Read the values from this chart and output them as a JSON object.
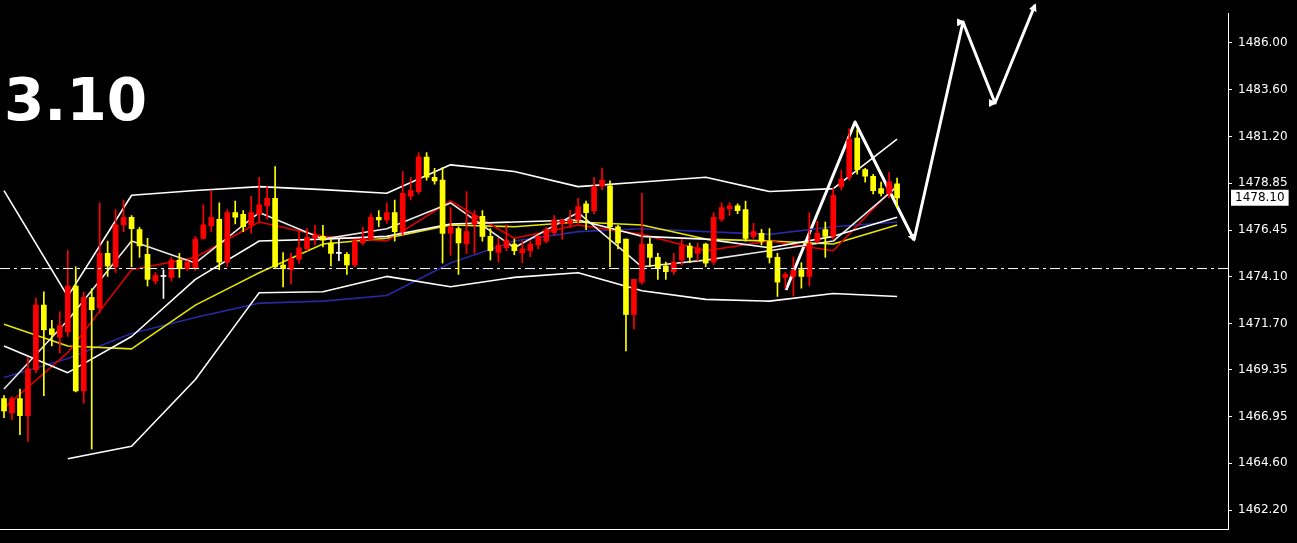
{
  "chart_data": {
    "type": "candlestick",
    "tick_labels": "y",
    "categories": [
      null,
      null,
      null,
      null,
      null,
      null,
      null,
      null,
      null,
      null,
      null,
      null,
      null,
      null,
      null,
      null,
      null,
      null,
      null,
      null,
      null,
      null,
      null,
      null,
      null,
      null,
      null,
      null,
      null,
      null,
      null,
      null,
      null,
      null,
      null,
      null,
      null,
      null,
      null,
      null,
      null,
      null,
      null,
      null,
      null,
      null,
      null,
      null,
      null,
      null,
      null,
      null,
      null,
      null,
      null,
      null,
      null,
      null,
      null,
      null,
      null,
      null,
      null,
      null,
      null,
      null,
      null,
      null,
      null,
      null,
      null,
      null,
      null,
      null,
      null,
      null,
      null,
      null,
      null,
      null,
      null,
      null,
      null,
      null,
      null,
      null,
      null,
      null,
      null,
      null,
      null,
      null,
      null,
      null,
      null,
      null,
      null,
      null,
      null,
      null,
      null,
      null,
      null,
      null,
      null,
      null,
      null,
      null,
      null,
      null,
      null,
      null,
      null,
      null,
      null,
      null,
      null,
      null,
      null,
      null,
      null,
      null,
      null,
      null,
      null,
      null,
      null,
      null,
      null,
      null,
      null,
      null,
      null,
      null,
      null,
      null,
      null,
      null,
      null,
      null,
      null,
      null,
      null,
      null,
      null,
      null,
      null,
      null,
      null,
      null,
      null,
      null,
      null,
      null
    ],
    "ohlc": [
      [
        1467.88,
        1468.03,
        1466.91,
        1467.25
      ],
      [
        1467.15,
        1467.98,
        1466.81,
        1467.88
      ],
      [
        1467.88,
        1468.37,
        1466.04,
        1467.01
      ],
      [
        1467.01,
        1469.97,
        1465.7,
        1469.39
      ],
      [
        1469.34,
        1472.98,
        1469.2,
        1472.64
      ],
      [
        1472.64,
        1473.32,
        1468.03,
        1471.38
      ],
      [
        1471.43,
        1471.87,
        1470.56,
        1471.14
      ],
      [
        1471.0,
        1472.3,
        1470.2,
        1471.6
      ],
      [
        1471.28,
        1475.41,
        1471.04,
        1473.61
      ],
      [
        1473.61,
        1474.59,
        1468.22,
        1468.27
      ],
      [
        1468.27,
        1473.3,
        1467.64,
        1473.03
      ],
      [
        1473.03,
        1473.47,
        1465.31,
        1472.4
      ],
      [
        1472.5,
        1477.84,
        1472.25,
        1475.27
      ],
      [
        1475.27,
        1475.9,
        1474.1,
        1474.63
      ],
      [
        1474.59,
        1477.5,
        1474.3,
        1476.72
      ],
      [
        1476.72,
        1477.99,
        1476.38,
        1477.11
      ],
      [
        1477.11,
        1477.2,
        1474.59,
        1476.53
      ],
      [
        1476.48,
        1476.6,
        1475.07,
        1475.65
      ],
      [
        1475.22,
        1476.04,
        1473.61,
        1473.95
      ],
      [
        1473.86,
        1474.3,
        1473.71,
        1474.15
      ],
      [
        1474.1,
        1474.44,
        1472.98,
        1474.1
      ],
      [
        1474.05,
        1475.07,
        1473.86,
        1474.93
      ],
      [
        1474.93,
        1475.27,
        1474.05,
        1474.49
      ],
      [
        1474.49,
        1474.9,
        1474.4,
        1474.83
      ],
      [
        1474.54,
        1476.14,
        1474.4,
        1476.0
      ],
      [
        1476.04,
        1477.74,
        1476.0,
        1476.72
      ],
      [
        1476.67,
        1478.47,
        1476.38,
        1477.11
      ],
      [
        1477.01,
        1477.84,
        1474.44,
        1474.83
      ],
      [
        1474.83,
        1477.5,
        1474.6,
        1477.35
      ],
      [
        1477.35,
        1477.94,
        1476.77,
        1477.11
      ],
      [
        1477.26,
        1477.45,
        1476.38,
        1476.63
      ],
      [
        1476.72,
        1478.18,
        1476.29,
        1477.35
      ],
      [
        1477.26,
        1479.15,
        1476.87,
        1477.74
      ],
      [
        1477.69,
        1478.67,
        1477.01,
        1478.08
      ],
      [
        1478.08,
        1479.69,
        1474.54,
        1474.59
      ],
      [
        1474.68,
        1475.31,
        1473.57,
        1474.49
      ],
      [
        1474.44,
        1475.27,
        1473.71,
        1475.02
      ],
      [
        1474.97,
        1476.38,
        1474.78,
        1475.56
      ],
      [
        1475.51,
        1476.53,
        1475.41,
        1476.09
      ],
      [
        1476.04,
        1476.7,
        1475.7,
        1476.19
      ],
      [
        1476.14,
        1476.7,
        1475.6,
        1475.95
      ],
      [
        1475.8,
        1476.0,
        1474.63,
        1475.27
      ],
      [
        1475.27,
        1476.0,
        1474.9,
        1475.27
      ],
      [
        1475.22,
        1475.31,
        1474.2,
        1474.68
      ],
      [
        1474.68,
        1476.0,
        1474.6,
        1475.9
      ],
      [
        1475.8,
        1476.6,
        1475.7,
        1476.04
      ],
      [
        1476.04,
        1477.3,
        1476.0,
        1477.11
      ],
      [
        1477.11,
        1477.45,
        1476.63,
        1476.97
      ],
      [
        1476.97,
        1477.84,
        1476.8,
        1477.35
      ],
      [
        1477.35,
        1477.99,
        1475.9,
        1476.38
      ],
      [
        1476.38,
        1479.44,
        1476.2,
        1478.33
      ],
      [
        1478.18,
        1479.15,
        1478.0,
        1478.47
      ],
      [
        1478.42,
        1480.41,
        1478.3,
        1480.17
      ],
      [
        1480.17,
        1480.41,
        1479.0,
        1479.15
      ],
      [
        1479.15,
        1479.6,
        1478.8,
        1478.96
      ],
      [
        1479.01,
        1479.64,
        1474.78,
        1476.29
      ],
      [
        1476.29,
        1477.6,
        1475.17,
        1476.63
      ],
      [
        1476.53,
        1476.63,
        1474.2,
        1475.8
      ],
      [
        1475.75,
        1478.42,
        1475.27,
        1476.38
      ],
      [
        1476.77,
        1477.45,
        1475.27,
        1477.21
      ],
      [
        1477.16,
        1477.45,
        1475.9,
        1476.14
      ],
      [
        1476.14,
        1476.53,
        1474.93,
        1475.41
      ],
      [
        1475.32,
        1476.04,
        1474.83,
        1475.7
      ],
      [
        1475.56,
        1476.72,
        1475.41,
        1475.95
      ],
      [
        1475.75,
        1476.0,
        1475.2,
        1475.41
      ],
      [
        1475.3,
        1475.9,
        1474.8,
        1475.5
      ],
      [
        1475.41,
        1475.9,
        1475.1,
        1475.75
      ],
      [
        1475.7,
        1476.2,
        1475.5,
        1476.14
      ],
      [
        1475.9,
        1476.6,
        1475.8,
        1476.48
      ],
      [
        1476.33,
        1477.2,
        1476.2,
        1476.97
      ],
      [
        1476.8,
        1477.0,
        1476.0,
        1476.97
      ],
      [
        1476.77,
        1477.45,
        1476.6,
        1476.97
      ],
      [
        1476.97,
        1478.08,
        1476.8,
        1477.65
      ],
      [
        1477.79,
        1477.94,
        1476.48,
        1477.35
      ],
      [
        1477.45,
        1479.15,
        1477.3,
        1478.67
      ],
      [
        1478.7,
        1479.6,
        1478.5,
        1479.0
      ],
      [
        1478.71,
        1478.96,
        1474.59,
        1476.63
      ],
      [
        1476.63,
        1476.7,
        1475.5,
        1475.8
      ],
      [
        1476.0,
        1476.0,
        1470.31,
        1472.16
      ],
      [
        1472.16,
        1473.95,
        1471.43,
        1473.95
      ],
      [
        1473.81,
        1478.33,
        1473.7,
        1475.75
      ],
      [
        1475.75,
        1476.04,
        1474.59,
        1475.07
      ],
      [
        1475.07,
        1475.27,
        1473.95,
        1474.54
      ],
      [
        1474.63,
        1474.83,
        1473.95,
        1474.34
      ],
      [
        1474.34,
        1475.27,
        1474.2,
        1474.83
      ],
      [
        1474.93,
        1476.0,
        1474.68,
        1475.65
      ],
      [
        1475.65,
        1475.8,
        1474.8,
        1475.07
      ],
      [
        1475.27,
        1475.8,
        1474.9,
        1475.56
      ],
      [
        1475.75,
        1475.8,
        1474.59,
        1474.78
      ],
      [
        1474.83,
        1477.35,
        1474.7,
        1477.11
      ],
      [
        1477.01,
        1477.84,
        1476.9,
        1477.6
      ],
      [
        1477.55,
        1477.84,
        1477.2,
        1477.69
      ],
      [
        1477.69,
        1477.8,
        1477.3,
        1477.45
      ],
      [
        1477.5,
        1477.94,
        1475.9,
        1476.04
      ],
      [
        1476.14,
        1476.8,
        1476.0,
        1476.38
      ],
      [
        1476.29,
        1476.5,
        1475.7,
        1475.9
      ],
      [
        1475.9,
        1476.53,
        1474.78,
        1475.07
      ],
      [
        1475.07,
        1475.27,
        1473.08,
        1473.81
      ],
      [
        1474.05,
        1474.3,
        1473.5,
        1474.2
      ],
      [
        1474.1,
        1475.1,
        1473.1,
        1474.4
      ],
      [
        1474.44,
        1474.8,
        1473.5,
        1474.1
      ],
      [
        1474.1,
        1477.35,
        1473.61,
        1475.75
      ],
      [
        1475.9,
        1476.9,
        1475.8,
        1476.29
      ],
      [
        1476.48,
        1476.87,
        1475.07,
        1476.14
      ],
      [
        1476.14,
        1478.6,
        1476.0,
        1478.23
      ],
      [
        1478.67,
        1479.5,
        1478.5,
        1479.06
      ],
      [
        1479.15,
        1481.63,
        1479.0,
        1481.09
      ],
      [
        1481.14,
        1481.58,
        1479.3,
        1479.54
      ],
      [
        1479.54,
        1479.6,
        1478.9,
        1479.2
      ],
      [
        1479.2,
        1479.3,
        1478.3,
        1478.47
      ],
      [
        1478.57,
        1478.9,
        1478.2,
        1478.33
      ],
      [
        1478.33,
        1479.4,
        1478.1,
        1478.91
      ],
      [
        1478.81,
        1479.1,
        1477.6,
        1478.1
      ],
      null,
      null,
      null,
      null,
      null,
      null,
      null,
      null,
      null,
      null,
      null,
      null,
      null,
      null,
      null,
      null,
      null,
      null,
      null,
      null,
      null,
      null,
      null,
      null,
      null,
      null,
      null,
      null,
      null,
      null,
      null,
      null,
      null,
      null,
      null,
      null,
      null,
      null,
      null,
      null,
      null
    ],
    "colors": [
      "#ffff00",
      "#ff0000",
      "#ffff00",
      "#ff0000",
      "#ff0000",
      "#ffff00",
      "#ffff00",
      "#ff0000",
      "#ff0000",
      "#ffff00",
      "#ff0000",
      "#ffff00",
      "#ff0000",
      "#ffff00",
      "#ff0000",
      "#ff0000",
      "#ffff00",
      "#ffff00",
      "#ffff00",
      "#ff0000",
      "#ffffff",
      "#ff0000",
      "#ffff00",
      "#ff0000",
      "#ff0000",
      "#ff0000",
      "#ff0000",
      "#ffff00",
      "#ff0000",
      "#ffff00",
      "#ffff00",
      "#ff0000",
      "#ff0000",
      "#ff0000",
      "#ffff00",
      "#ffff00",
      "#ff0000",
      "#ff0000",
      "#ff0000",
      "#ff0000",
      "#ffff00",
      "#ffff00",
      "#ffffff",
      "#ffff00",
      "#ff0000",
      "#ff0000",
      "#ff0000",
      "#ffff00",
      "#ff0000",
      "#ffff00",
      "#ff0000",
      "#ff0000",
      "#ff0000",
      "#ffff00",
      "#ffff00",
      "#ffff00",
      "#ff0000",
      "#ffff00",
      "#ff0000",
      "#ff0000",
      "#ffff00",
      "#ffff00",
      "#ff0000",
      "#ff0000",
      "#ffff00",
      "#ff0000",
      "#ff0000",
      "#ff0000",
      "#ff0000",
      "#ff0000",
      "#ff0000",
      "#ff0000",
      "#ff0000",
      "#ffff00",
      "#ff0000",
      "#ff0000",
      "#ffff00",
      "#ffff00",
      "#ffff00",
      "#ff0000",
      "#ff0000",
      "#ffff00",
      "#ffff00",
      "#ffff00",
      "#ff0000",
      "#ff0000",
      "#ffff00",
      "#ff0000",
      "#ffff00",
      "#ff0000",
      "#ff0000",
      "#ff0000",
      "#ffff00",
      "#ffff00",
      "#ff0000",
      "#ffff00",
      "#ffff00",
      "#ffff00",
      "#ff0000",
      "#ff0000",
      "#ffff00",
      "#ff0000",
      "#ff0000",
      "#ffff00",
      "#ff0000",
      "#ff0000",
      "#ff0000",
      "#ffff00",
      "#ffff00",
      "#ffff00",
      "#ffff00",
      "#ff0000",
      "#ffff00",
      null,
      null,
      null,
      null,
      null,
      null,
      null,
      null,
      null,
      null,
      null,
      null,
      null,
      null,
      null,
      null,
      null,
      null,
      null,
      null,
      null,
      null,
      null,
      null,
      null,
      null,
      null,
      null,
      null,
      null,
      null,
      null,
      null,
      null,
      null,
      null,
      null,
      null,
      null,
      null,
      null
    ],
    "series": [
      {
        "type": "line",
        "color": "#ffffff",
        "values": [
          1478.47,
          null,
          null,
          null,
          null,
          null,
          null,
          null,
          1473.08,
          null,
          null,
          null,
          null,
          null,
          null,
          null,
          1478.23,
          null,
          null,
          null,
          null,
          null,
          null,
          null,
          1478.47,
          null,
          null,
          null,
          null,
          null,
          null,
          null,
          1478.67,
          null,
          null,
          null,
          null,
          null,
          null,
          null,
          1478.52,
          null,
          null,
          null,
          null,
          null,
          null,
          null,
          1478.33,
          null,
          null,
          null,
          null,
          null,
          null,
          null,
          1479.78,
          null,
          null,
          null,
          null,
          null,
          null,
          null,
          1479.44,
          null,
          null,
          null,
          null,
          null,
          null,
          null,
          1478.67,
          null,
          null,
          null,
          null,
          null,
          null,
          null,
          1478.91,
          null,
          null,
          null,
          null,
          null,
          null,
          null,
          1479.15,
          null,
          null,
          null,
          null,
          null,
          null,
          null,
          1478.42,
          null,
          null,
          null,
          null,
          null,
          null,
          null,
          1478.57,
          null,
          null,
          null,
          null,
          null,
          null,
          null,
          1481.09,
          null,
          null,
          null,
          null,
          null,
          null,
          null,
          null,
          null,
          null,
          null,
          null,
          null,
          null,
          null,
          null,
          null,
          null,
          null,
          null,
          null,
          null,
          null,
          null,
          null,
          null,
          null,
          null,
          null,
          null,
          null,
          null,
          null,
          null,
          null,
          null,
          null,
          null,
          null,
          null,
          null
        ]
      },
      {
        "type": "line",
        "color": "#ffffff",
        "values": [
          1470.56,
          null,
          null,
          null,
          null,
          null,
          null,
          null,
          1469.2,
          null,
          null,
          null,
          null,
          null,
          null,
          null,
          1471.04,
          null,
          null,
          null,
          null,
          null,
          null,
          null,
          1473.95,
          null,
          null,
          null,
          null,
          null,
          null,
          null,
          1475.9,
          null,
          null,
          null,
          null,
          null,
          null,
          null,
          1476.0,
          null,
          null,
          null,
          null,
          null,
          null,
          null,
          1476.14,
          null,
          null,
          null,
          null,
          null,
          null,
          null,
          1476.77,
          null,
          null,
          null,
          null,
          null,
          null,
          null,
          1476.87,
          null,
          null,
          null,
          null,
          null,
          null,
          null,
          1476.97,
          null,
          null,
          null,
          null,
          null,
          null,
          null,
          1476.14,
          null,
          null,
          null,
          null,
          null,
          null,
          null,
          1476.0,
          null,
          null,
          null,
          null,
          null,
          null,
          null,
          1475.56,
          null,
          null,
          null,
          null,
          null,
          null,
          null,
          1476.14,
          null,
          null,
          null,
          null,
          null,
          null,
          null,
          1477.11,
          null,
          null,
          null,
          null,
          null,
          null,
          null,
          null,
          null,
          null,
          null,
          null,
          null,
          null,
          null,
          null,
          null,
          null,
          null,
          null,
          null,
          null,
          null,
          null,
          null,
          null,
          null,
          null,
          null,
          null,
          null,
          null,
          null,
          null,
          null,
          null,
          null,
          null,
          null,
          null,
          null
        ]
      },
      {
        "type": "line",
        "color": "#ffffff",
        "values": [
          null,
          null,
          null,
          null,
          null,
          null,
          null,
          null,
          1464.82,
          null,
          null,
          null,
          null,
          null,
          null,
          null,
          1465.45,
          null,
          null,
          null,
          null,
          null,
          null,
          null,
          1468.85,
          null,
          null,
          null,
          null,
          null,
          null,
          null,
          1473.27,
          null,
          null,
          null,
          null,
          null,
          null,
          null,
          1473.32,
          null,
          null,
          null,
          null,
          null,
          null,
          null,
          1474.1,
          null,
          null,
          null,
          null,
          null,
          null,
          null,
          1473.57,
          null,
          null,
          null,
          null,
          null,
          null,
          null,
          1474.05,
          null,
          null,
          null,
          null,
          null,
          null,
          null,
          1474.29,
          null,
          null,
          null,
          null,
          null,
          null,
          null,
          1473.37,
          null,
          null,
          null,
          null,
          null,
          null,
          null,
          1472.93,
          null,
          null,
          null,
          null,
          null,
          null,
          null,
          1472.84,
          null,
          null,
          null,
          null,
          null,
          null,
          null,
          1473.23,
          null,
          null,
          null,
          null,
          null,
          null,
          null,
          1473.08,
          null,
          null,
          null,
          null,
          null,
          null,
          null,
          null,
          null,
          null,
          null,
          null,
          null,
          null,
          null,
          null,
          null,
          null,
          null,
          null,
          null,
          null,
          null,
          null,
          null,
          null,
          null,
          null,
          null,
          null,
          null,
          null,
          null,
          null,
          null,
          null,
          null,
          null,
          null,
          null,
          null
        ]
      },
      {
        "type": "line",
        "color": "#e8e8e8",
        "values": [
          1468.37,
          null,
          null,
          null,
          null,
          null,
          null,
          null,
          1471.87,
          null,
          null,
          null,
          null,
          null,
          null,
          null,
          1475.9,
          null,
          null,
          null,
          null,
          null,
          null,
          null,
          1474.78,
          null,
          null,
          null,
          null,
          null,
          null,
          null,
          1477.35,
          null,
          null,
          null,
          null,
          null,
          null,
          null,
          1476.0,
          null,
          null,
          null,
          null,
          null,
          null,
          null,
          1476.53,
          null,
          null,
          null,
          null,
          null,
          null,
          null,
          1477.84,
          null,
          null,
          null,
          null,
          null,
          null,
          null,
          1475.56,
          null,
          null,
          null,
          null,
          null,
          null,
          null,
          1477.35,
          null,
          null,
          null,
          null,
          null,
          null,
          null,
          1474.59,
          null,
          null,
          null,
          null,
          null,
          null,
          null,
          1474.93,
          null,
          null,
          null,
          null,
          null,
          null,
          null,
          1475.41,
          null,
          null,
          null,
          null,
          null,
          null,
          null,
          1475.9,
          null,
          null,
          null,
          null,
          null,
          null,
          null,
          1478.67,
          null,
          null,
          null,
          null,
          null,
          null,
          null,
          null,
          null,
          null,
          null,
          null,
          null,
          null,
          null,
          null,
          null,
          null,
          null,
          null,
          null,
          null,
          null,
          null,
          null,
          null,
          null,
          null,
          null,
          null,
          null,
          null,
          null,
          null,
          null,
          null,
          null,
          null,
          null,
          null,
          null
        ]
      },
      {
        "type": "line",
        "color": "#e00000",
        "values": [
          1467.4,
          null,
          null,
          null,
          null,
          null,
          null,
          null,
          1470.22,
          null,
          null,
          null,
          null,
          null,
          null,
          null,
          1474.44,
          null,
          null,
          null,
          null,
          null,
          null,
          null,
          1475.07,
          null,
          null,
          null,
          null,
          null,
          null,
          null,
          1476.87,
          null,
          null,
          null,
          null,
          null,
          null,
          null,
          1476.14,
          null,
          null,
          null,
          null,
          null,
          null,
          null,
          1475.9,
          null,
          null,
          null,
          null,
          null,
          null,
          null,
          1477.94,
          null,
          null,
          null,
          null,
          null,
          null,
          null,
          1476.04,
          null,
          null,
          null,
          null,
          null,
          null,
          null,
          1476.72,
          null,
          null,
          null,
          null,
          null,
          null,
          null,
          1476.24,
          null,
          null,
          null,
          null,
          null,
          null,
          null,
          1475.41,
          null,
          null,
          null,
          null,
          null,
          null,
          null,
          1475.9,
          null,
          null,
          null,
          null,
          null,
          null,
          null,
          1475.41,
          null,
          null,
          null,
          null,
          null,
          null,
          null,
          1478.81,
          null,
          null,
          null,
          null,
          null,
          null,
          null,
          null,
          null,
          null,
          null,
          null,
          null,
          null,
          null,
          null,
          null,
          null,
          null,
          null,
          null,
          null,
          null,
          null,
          null,
          null,
          null,
          null,
          null,
          null,
          null,
          null,
          null,
          null,
          null,
          null,
          null,
          null,
          null,
          null,
          null
        ]
      },
      {
        "type": "line",
        "color": "#e6e600",
        "values": [
          1471.67,
          null,
          null,
          null,
          null,
          null,
          null,
          null,
          1470.56,
          null,
          null,
          null,
          null,
          null,
          null,
          null,
          1470.41,
          null,
          null,
          null,
          null,
          null,
          null,
          null,
          1472.64,
          null,
          null,
          null,
          null,
          null,
          null,
          null,
          1474.29,
          null,
          null,
          null,
          null,
          null,
          null,
          null,
          1475.75,
          null,
          null,
          null,
          null,
          null,
          null,
          null,
          1476.04,
          null,
          null,
          null,
          null,
          null,
          null,
          null,
          1476.72,
          null,
          null,
          null,
          null,
          null,
          null,
          null,
          1476.63,
          null,
          null,
          null,
          null,
          null,
          null,
          null,
          1476.87,
          null,
          null,
          null,
          null,
          null,
          null,
          null,
          1476.72,
          null,
          null,
          null,
          null,
          null,
          null,
          null,
          1476.0,
          null,
          null,
          null,
          null,
          null,
          null,
          null,
          1475.9,
          null,
          null,
          null,
          null,
          null,
          null,
          null,
          1475.75,
          null,
          null,
          null,
          null,
          null,
          null,
          null,
          1476.72,
          null,
          null,
          null,
          null,
          null,
          null,
          null,
          null,
          null,
          null,
          null,
          null,
          null,
          null,
          null,
          null,
          null,
          null,
          null,
          null,
          null,
          null,
          null,
          null,
          null,
          null,
          null,
          null,
          null,
          null,
          null,
          null,
          null,
          null,
          null,
          null,
          null,
          null,
          null,
          null,
          null
        ]
      },
      {
        "type": "line",
        "color": "#2828a0",
        "values": [
          1468.95,
          null,
          null,
          null,
          null,
          null,
          null,
          null,
          1469.92,
          null,
          null,
          null,
          null,
          null,
          null,
          null,
          1471.19,
          null,
          null,
          null,
          null,
          null,
          null,
          null,
          1472.01,
          null,
          null,
          null,
          null,
          null,
          null,
          null,
          1472.74,
          null,
          null,
          null,
          null,
          null,
          null,
          null,
          1472.84,
          null,
          null,
          null,
          null,
          null,
          null,
          null,
          1473.13,
          null,
          null,
          null,
          null,
          null,
          null,
          null,
          1474.78,
          null,
          null,
          null,
          null,
          null,
          null,
          null,
          1475.9,
          null,
          null,
          null,
          null,
          null,
          null,
          null,
          1476.38,
          null,
          null,
          null,
          null,
          null,
          null,
          null,
          1476.53,
          null,
          null,
          null,
          null,
          null,
          null,
          null,
          1476.38,
          null,
          null,
          null,
          null,
          null,
          null,
          null,
          1476.24,
          null,
          null,
          null,
          null,
          null,
          null,
          null,
          1476.63,
          null,
          null,
          null,
          null,
          null,
          null,
          null,
          1476.87,
          null,
          null,
          null,
          null,
          null,
          null,
          null,
          null,
          null,
          null,
          null,
          null,
          null,
          null,
          null,
          null,
          null,
          null,
          null,
          null,
          null,
          null,
          null,
          null,
          null,
          null,
          null,
          null,
          null,
          null,
          null,
          null,
          null,
          null,
          null,
          null,
          null,
          null,
          null,
          null,
          null
        ]
      }
    ],
    "ylim": [
      1461.2,
      1487.5
    ],
    "yticks": [
      {
        "value": 1486,
        "label": "1486.00"
      },
      {
        "value": 1483.6,
        "label": "1483.60"
      },
      {
        "value": 1481.2,
        "label": "1481.20"
      },
      {
        "value": 1478.85,
        "label": "1478.85"
      },
      {
        "value": 1476.45,
        "label": "1476.45"
      },
      {
        "value": 1474.1,
        "label": "1474.10"
      },
      {
        "value": 1471.7,
        "label": "1471.70"
      },
      {
        "value": 1469.35,
        "label": "1469.35"
      },
      {
        "value": 1466.95,
        "label": "1466.95"
      },
      {
        "value": 1464.6,
        "label": "1464.60"
      },
      {
        "value": 1462.2,
        "label": "1462.20"
      }
    ],
    "ref_lines": [
      {
        "axis": "y",
        "value": 1474.5,
        "color": "#ffffff",
        "line_style": "dashed"
      }
    ],
    "annotations": [
      "3.10",
      "1478.10"
    ]
  }
}
